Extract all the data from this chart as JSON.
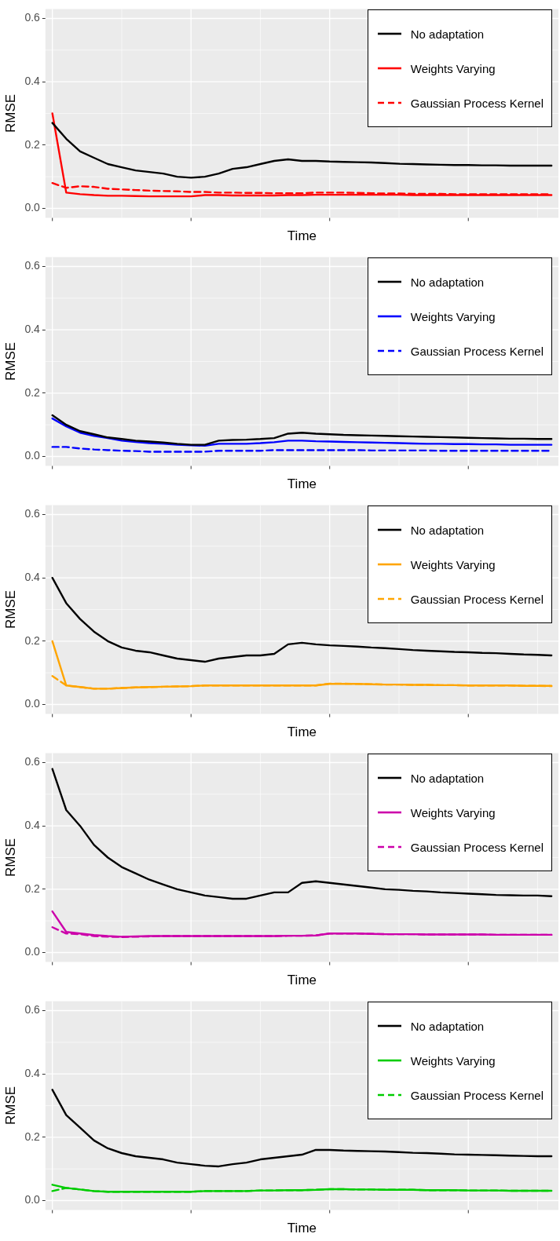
{
  "chart_data": [
    {
      "type": "line",
      "xlabel": "Time",
      "ylabel": "RMSE",
      "ylim": [
        -0.03,
        0.63
      ],
      "yticks": [
        {
          "value": 0,
          "label": "0.0"
        },
        {
          "value": 0.2,
          "label": "0.2"
        },
        {
          "value": 0.4,
          "label": "0.4"
        },
        {
          "value": 0.6,
          "label": "0.6"
        }
      ],
      "grid": true,
      "legend": "top right",
      "tick_labels": "y",
      "categories": [
        null,
        null,
        null,
        null,
        null,
        null,
        null,
        null,
        null,
        null,
        null,
        null,
        null,
        null,
        null,
        null,
        null,
        null,
        null,
        null,
        null,
        null,
        null,
        null,
        null,
        null,
        null,
        null,
        null,
        null,
        null,
        null,
        null,
        null,
        null,
        null,
        null
      ],
      "series": [
        {
          "name": "No adaptation",
          "color": "#000000",
          "line_style": "solid",
          "values": [
            0.27,
            0.22,
            0.18,
            0.16,
            0.14,
            0.13,
            0.12,
            0.115,
            0.11,
            0.1,
            0.097,
            0.1,
            0.11,
            0.125,
            0.13,
            0.14,
            0.15,
            0.155,
            0.15,
            0.15,
            0.148,
            0.147,
            0.146,
            0.145,
            0.143,
            0.141,
            0.14,
            0.139,
            0.138,
            0.137,
            0.137,
            0.136,
            0.136,
            0.135,
            0.135,
            0.135,
            0.135
          ]
        },
        {
          "name": "Weights Varying",
          "color": "#ff0000",
          "line_style": "solid",
          "values": [
            0.3,
            0.05,
            0.045,
            0.042,
            0.04,
            0.04,
            0.039,
            0.038,
            0.038,
            0.038,
            0.038,
            0.042,
            0.042,
            0.041,
            0.041,
            0.041,
            0.041,
            0.042,
            0.042,
            0.043,
            0.043,
            0.043,
            0.043,
            0.043,
            0.043,
            0.043,
            0.042,
            0.042,
            0.042,
            0.042,
            0.042,
            0.042,
            0.042,
            0.042,
            0.042,
            0.042,
            0.042
          ]
        },
        {
          "name": "Gaussian Process Kernel",
          "color": "#ff0000",
          "line_style": "dashed",
          "values": [
            0.08,
            0.065,
            0.07,
            0.068,
            0.062,
            0.06,
            0.058,
            0.056,
            0.055,
            0.054,
            0.052,
            0.052,
            0.05,
            0.05,
            0.049,
            0.049,
            0.048,
            0.048,
            0.048,
            0.05,
            0.05,
            0.05,
            0.049,
            0.048,
            0.047,
            0.047,
            0.046,
            0.046,
            0.046,
            0.045,
            0.045,
            0.045,
            0.045,
            0.045,
            0.045,
            0.045,
            0.045
          ]
        }
      ]
    },
    {
      "type": "line",
      "xlabel": "Time",
      "ylabel": "RMSE",
      "ylim": [
        -0.03,
        0.63
      ],
      "yticks": [
        {
          "value": 0,
          "label": "0.0"
        },
        {
          "value": 0.2,
          "label": "0.2"
        },
        {
          "value": 0.4,
          "label": "0.4"
        },
        {
          "value": 0.6,
          "label": "0.6"
        }
      ],
      "grid": true,
      "legend": "top right",
      "tick_labels": "y",
      "categories": [
        null,
        null,
        null,
        null,
        null,
        null,
        null,
        null,
        null,
        null,
        null,
        null,
        null,
        null,
        null,
        null,
        null,
        null,
        null,
        null,
        null,
        null,
        null,
        null,
        null,
        null,
        null,
        null,
        null,
        null,
        null,
        null,
        null,
        null,
        null,
        null,
        null
      ],
      "series": [
        {
          "name": "No adaptation",
          "color": "#000000",
          "line_style": "solid",
          "values": [
            0.13,
            0.1,
            0.08,
            0.07,
            0.06,
            0.055,
            0.05,
            0.047,
            0.044,
            0.04,
            0.037,
            0.037,
            0.05,
            0.052,
            0.053,
            0.055,
            0.058,
            0.072,
            0.075,
            0.072,
            0.07,
            0.068,
            0.067,
            0.066,
            0.065,
            0.064,
            0.063,
            0.062,
            0.061,
            0.06,
            0.059,
            0.058,
            0.057,
            0.056,
            0.056,
            0.055,
            0.055
          ]
        },
        {
          "name": "Weights Varying",
          "color": "#0000ff",
          "line_style": "solid",
          "values": [
            0.12,
            0.095,
            0.075,
            0.065,
            0.058,
            0.05,
            0.046,
            0.042,
            0.04,
            0.037,
            0.035,
            0.034,
            0.04,
            0.04,
            0.04,
            0.042,
            0.045,
            0.05,
            0.05,
            0.048,
            0.047,
            0.046,
            0.045,
            0.044,
            0.043,
            0.042,
            0.041,
            0.04,
            0.04,
            0.039,
            0.039,
            0.038,
            0.038,
            0.037,
            0.037,
            0.037,
            0.037
          ]
        },
        {
          "name": "Gaussian Process Kernel",
          "color": "#0000ff",
          "line_style": "dashed",
          "values": [
            0.03,
            0.03,
            0.025,
            0.022,
            0.02,
            0.018,
            0.017,
            0.015,
            0.015,
            0.015,
            0.015,
            0.015,
            0.018,
            0.018,
            0.018,
            0.018,
            0.02,
            0.02,
            0.02,
            0.02,
            0.02,
            0.02,
            0.02,
            0.019,
            0.019,
            0.019,
            0.019,
            0.019,
            0.018,
            0.018,
            0.018,
            0.018,
            0.018,
            0.018,
            0.018,
            0.018,
            0.018
          ]
        }
      ]
    },
    {
      "type": "line",
      "xlabel": "Time",
      "ylabel": "RMSE",
      "ylim": [
        -0.03,
        0.63
      ],
      "yticks": [
        {
          "value": 0,
          "label": "0.0"
        },
        {
          "value": 0.2,
          "label": "0.2"
        },
        {
          "value": 0.4,
          "label": "0.4"
        },
        {
          "value": 0.6,
          "label": "0.6"
        }
      ],
      "grid": true,
      "legend": "top right",
      "tick_labels": "y",
      "categories": [
        null,
        null,
        null,
        null,
        null,
        null,
        null,
        null,
        null,
        null,
        null,
        null,
        null,
        null,
        null,
        null,
        null,
        null,
        null,
        null,
        null,
        null,
        null,
        null,
        null,
        null,
        null,
        null,
        null,
        null,
        null,
        null,
        null,
        null,
        null,
        null,
        null
      ],
      "series": [
        {
          "name": "No adaptation",
          "color": "#000000",
          "line_style": "solid",
          "values": [
            0.4,
            0.32,
            0.27,
            0.23,
            0.2,
            0.18,
            0.17,
            0.165,
            0.155,
            0.145,
            0.14,
            0.135,
            0.145,
            0.15,
            0.155,
            0.155,
            0.16,
            0.19,
            0.195,
            0.19,
            0.187,
            0.185,
            0.183,
            0.18,
            0.178,
            0.175,
            0.172,
            0.17,
            0.168,
            0.166,
            0.165,
            0.163,
            0.162,
            0.16,
            0.158,
            0.157,
            0.155
          ]
        },
        {
          "name": "Weights Varying",
          "color": "#ffa500",
          "line_style": "solid",
          "values": [
            0.2,
            0.06,
            0.055,
            0.05,
            0.05,
            0.052,
            0.054,
            0.055,
            0.056,
            0.057,
            0.058,
            0.06,
            0.06,
            0.06,
            0.06,
            0.06,
            0.06,
            0.06,
            0.06,
            0.06,
            0.065,
            0.065,
            0.065,
            0.064,
            0.063,
            0.063,
            0.062,
            0.062,
            0.061,
            0.061,
            0.06,
            0.06,
            0.06,
            0.06,
            0.059,
            0.059,
            0.059
          ]
        },
        {
          "name": "Gaussian Process Kernel",
          "color": "#ffa500",
          "line_style": "dashed",
          "values": [
            0.09,
            0.06,
            0.055,
            0.05,
            0.05,
            0.052,
            0.054,
            0.055,
            0.056,
            0.057,
            0.058,
            0.06,
            0.06,
            0.06,
            0.06,
            0.06,
            0.06,
            0.06,
            0.06,
            0.06,
            0.066,
            0.066,
            0.065,
            0.064,
            0.063,
            0.063,
            0.062,
            0.062,
            0.061,
            0.061,
            0.06,
            0.06,
            0.06,
            0.06,
            0.059,
            0.059,
            0.058
          ]
        }
      ]
    },
    {
      "type": "line",
      "xlabel": "Time",
      "ylabel": "RMSE",
      "ylim": [
        -0.03,
        0.63
      ],
      "yticks": [
        {
          "value": 0,
          "label": "0.0"
        },
        {
          "value": 0.2,
          "label": "0.2"
        },
        {
          "value": 0.4,
          "label": "0.4"
        },
        {
          "value": 0.6,
          "label": "0.6"
        }
      ],
      "grid": true,
      "legend": "top right",
      "tick_labels": "y",
      "categories": [
        null,
        null,
        null,
        null,
        null,
        null,
        null,
        null,
        null,
        null,
        null,
        null,
        null,
        null,
        null,
        null,
        null,
        null,
        null,
        null,
        null,
        null,
        null,
        null,
        null,
        null,
        null,
        null,
        null,
        null,
        null,
        null,
        null,
        null,
        null,
        null,
        null
      ],
      "series": [
        {
          "name": "No adaptation",
          "color": "#000000",
          "line_style": "solid",
          "values": [
            0.58,
            0.45,
            0.4,
            0.34,
            0.3,
            0.27,
            0.25,
            0.23,
            0.215,
            0.2,
            0.19,
            0.18,
            0.175,
            0.17,
            0.17,
            0.18,
            0.19,
            0.19,
            0.22,
            0.225,
            0.22,
            0.215,
            0.21,
            0.205,
            0.2,
            0.198,
            0.195,
            0.193,
            0.19,
            0.188,
            0.186,
            0.184,
            0.182,
            0.181,
            0.18,
            0.18,
            0.178
          ]
        },
        {
          "name": "Weights Varying",
          "color": "#cc00aa",
          "line_style": "solid",
          "values": [
            0.13,
            0.065,
            0.06,
            0.055,
            0.052,
            0.05,
            0.051,
            0.052,
            0.052,
            0.052,
            0.052,
            0.052,
            0.052,
            0.052,
            0.052,
            0.052,
            0.052,
            0.053,
            0.053,
            0.054,
            0.06,
            0.06,
            0.06,
            0.059,
            0.058,
            0.058,
            0.058,
            0.057,
            0.057,
            0.057,
            0.057,
            0.057,
            0.056,
            0.056,
            0.056,
            0.056,
            0.056
          ]
        },
        {
          "name": "Gaussian Process Kernel",
          "color": "#cc00aa",
          "line_style": "dashed",
          "values": [
            0.08,
            0.06,
            0.058,
            0.052,
            0.05,
            0.049,
            0.05,
            0.051,
            0.052,
            0.052,
            0.052,
            0.052,
            0.052,
            0.052,
            0.052,
            0.052,
            0.052,
            0.053,
            0.053,
            0.054,
            0.06,
            0.06,
            0.06,
            0.059,
            0.058,
            0.058,
            0.058,
            0.057,
            0.057,
            0.057,
            0.057,
            0.057,
            0.056,
            0.056,
            0.056,
            0.056,
            0.056
          ]
        }
      ]
    },
    {
      "type": "line",
      "xlabel": "Time",
      "ylabel": "RMSE",
      "ylim": [
        -0.03,
        0.63
      ],
      "yticks": [
        {
          "value": 0,
          "label": "0.0"
        },
        {
          "value": 0.2,
          "label": "0.2"
        },
        {
          "value": 0.4,
          "label": "0.4"
        },
        {
          "value": 0.6,
          "label": "0.6"
        }
      ],
      "grid": true,
      "legend": "top right",
      "tick_labels": "y",
      "categories": [
        null,
        null,
        null,
        null,
        null,
        null,
        null,
        null,
        null,
        null,
        null,
        null,
        null,
        null,
        null,
        null,
        null,
        null,
        null,
        null,
        null,
        null,
        null,
        null,
        null,
        null,
        null,
        null,
        null,
        null,
        null,
        null,
        null,
        null,
        null,
        null,
        null
      ],
      "series": [
        {
          "name": "No adaptation",
          "color": "#000000",
          "line_style": "solid",
          "values": [
            0.35,
            0.27,
            0.23,
            0.19,
            0.165,
            0.15,
            0.14,
            0.135,
            0.13,
            0.12,
            0.115,
            0.11,
            0.108,
            0.115,
            0.12,
            0.13,
            0.135,
            0.14,
            0.145,
            0.16,
            0.16,
            0.158,
            0.157,
            0.156,
            0.155,
            0.153,
            0.151,
            0.15,
            0.148,
            0.146,
            0.145,
            0.144,
            0.143,
            0.142,
            0.141,
            0.14,
            0.14
          ]
        },
        {
          "name": "Weights Varying",
          "color": "#00cc00",
          "line_style": "solid",
          "values": [
            0.05,
            0.04,
            0.035,
            0.03,
            0.028,
            0.028,
            0.028,
            0.028,
            0.028,
            0.028,
            0.028,
            0.03,
            0.03,
            0.03,
            0.03,
            0.032,
            0.032,
            0.033,
            0.033,
            0.034,
            0.036,
            0.036,
            0.035,
            0.035,
            0.034,
            0.034,
            0.034,
            0.033,
            0.033,
            0.033,
            0.032,
            0.032,
            0.032,
            0.031,
            0.031,
            0.031,
            0.031
          ]
        },
        {
          "name": "Gaussian Process Kernel",
          "color": "#00cc00",
          "line_style": "dashed",
          "values": [
            0.03,
            0.04,
            0.035,
            0.03,
            0.028,
            0.028,
            0.028,
            0.028,
            0.028,
            0.028,
            0.028,
            0.03,
            0.03,
            0.03,
            0.03,
            0.032,
            0.032,
            0.033,
            0.033,
            0.034,
            0.036,
            0.036,
            0.035,
            0.035,
            0.034,
            0.034,
            0.034,
            0.033,
            0.033,
            0.033,
            0.032,
            0.032,
            0.032,
            0.031,
            0.031,
            0.031,
            0.031
          ]
        }
      ]
    }
  ]
}
